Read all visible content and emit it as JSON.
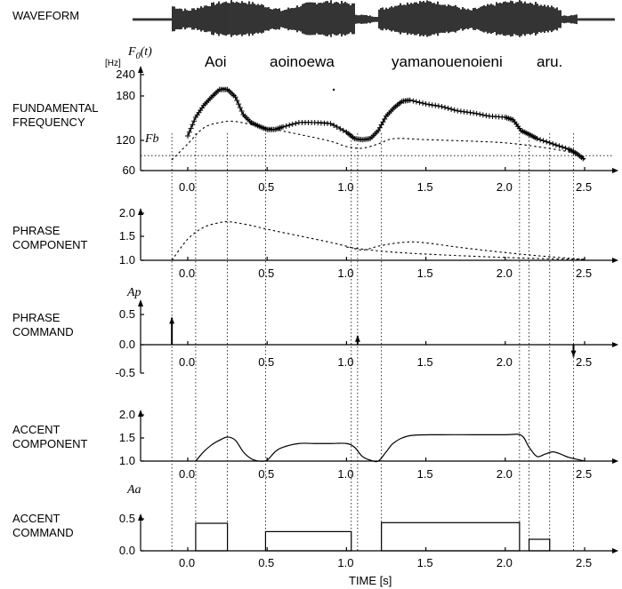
{
  "chart_data": {
    "type": "line",
    "title": "",
    "xlabel": "TIME [s]",
    "xlim": [
      -0.3,
      2.7
    ],
    "xticks": [
      "0.0",
      "0.5",
      "1.0",
      "1.5",
      "2.0",
      "2.5"
    ],
    "waveform_label": "WAVEFORM",
    "words": [
      "Aoi",
      "aoinoewa",
      "yamanouenoieni",
      "aru."
    ],
    "panels": [
      {
        "id": "f0",
        "label": "FUNDAMENTAL\nFREQUENCY",
        "unit": "[Hz]",
        "symbol": "F0(t)",
        "baseline_label": "Fb",
        "yticks": [
          "60",
          "120",
          "180",
          "240"
        ],
        "ylim": [
          60,
          240
        ],
        "fb": 88,
        "series": [
          {
            "style": "observed",
            "x": [
              0.0,
              0.05,
              0.1,
              0.15,
              0.2,
              0.25,
              0.3,
              0.35,
              0.4,
              0.45,
              0.5,
              0.55,
              0.6,
              0.7,
              0.8,
              0.9,
              1.0,
              1.05,
              1.1,
              1.15,
              1.2,
              1.25,
              1.3,
              1.35,
              1.4,
              1.5,
              1.6,
              1.7,
              1.8,
              1.9,
              2.0,
              2.05,
              2.1,
              2.15,
              2.2,
              2.3,
              2.4,
              2.45,
              2.5
            ],
            "y": [
              125,
              160,
              182,
              198,
              212,
              212,
              198,
              165,
              150,
              143,
              137,
              137,
              142,
              150,
              150,
              148,
              132,
              120,
              118,
              120,
              135,
              162,
              178,
              190,
              192,
              185,
              180,
              172,
              168,
              162,
              160,
              155,
              135,
              128,
              120,
              110,
              100,
              92,
              80
            ]
          },
          {
            "style": "model",
            "x": [
              -0.1,
              0.0,
              0.1,
              0.2,
              0.3,
              0.5,
              0.7,
              0.9,
              1.0,
              1.1,
              1.2,
              1.3,
              1.5,
              1.8,
              2.0,
              2.2,
              2.4,
              2.5
            ],
            "y": [
              80,
              110,
              140,
              150,
              152,
              140,
              128,
              115,
              105,
              102,
              110,
              120,
              118,
              115,
              112,
              105,
              95,
              85
            ]
          }
        ]
      },
      {
        "id": "phrase_component",
        "label": "PHRASE\nCOMPONENT",
        "yticks": [
          "1.0",
          "1.5",
          "2.0"
        ],
        "ylim": [
          1.0,
          2.0
        ],
        "series": [
          {
            "style": "model",
            "x": [
              -0.1,
              0.0,
              0.1,
              0.2,
              0.25,
              0.3,
              0.4,
              0.5,
              0.7,
              0.9,
              1.0,
              1.1,
              1.2,
              1.3,
              1.4,
              1.5,
              1.7,
              1.9,
              2.1,
              2.3,
              2.5
            ],
            "y": [
              1.0,
              1.45,
              1.7,
              1.8,
              1.82,
              1.8,
              1.74,
              1.66,
              1.52,
              1.38,
              1.3,
              1.22,
              1.3,
              1.36,
              1.39,
              1.37,
              1.28,
              1.2,
              1.13,
              1.07,
              1.02
            ]
          },
          {
            "style": "model",
            "x": [
              1.0,
              1.2,
              1.4,
              1.7,
              2.0,
              2.3,
              2.5
            ],
            "y": [
              1.28,
              1.2,
              1.15,
              1.1,
              1.06,
              1.03,
              1.02
            ]
          }
        ]
      },
      {
        "id": "phrase_command",
        "label": "PHRASE\nCOMMAND",
        "symbol": "Ap",
        "yticks": [
          "0.0",
          "0.5",
          "-0.5"
        ],
        "ylim": [
          -0.5,
          0.5
        ],
        "impulses": [
          {
            "t": -0.1,
            "a": 0.45
          },
          {
            "t": 1.07,
            "a": 0.15
          },
          {
            "t": 2.43,
            "a": -0.2
          }
        ]
      },
      {
        "id": "accent_component",
        "label": "ACCENT\nCOMPONENT",
        "yticks": [
          "1.0",
          "1.5",
          "2.0"
        ],
        "ylim": [
          1.0,
          2.0
        ],
        "series": [
          {
            "style": "model",
            "x": [
              0.05,
              0.1,
              0.15,
              0.2,
              0.25,
              0.3,
              0.35,
              0.4,
              0.45,
              0.5,
              0.55,
              0.6,
              0.7,
              0.8,
              0.9,
              1.0,
              1.05,
              1.1,
              1.15,
              1.2,
              1.25,
              1.3,
              1.4,
              1.6,
              1.8,
              2.0,
              2.1,
              2.15,
              2.2,
              2.25,
              2.3,
              2.35,
              2.4,
              2.5
            ],
            "y": [
              1.0,
              1.2,
              1.35,
              1.45,
              1.52,
              1.45,
              1.2,
              1.05,
              1.0,
              1.02,
              1.2,
              1.3,
              1.38,
              1.38,
              1.38,
              1.38,
              1.3,
              1.1,
              1.02,
              1.0,
              1.2,
              1.4,
              1.55,
              1.57,
              1.57,
              1.57,
              1.56,
              1.3,
              1.1,
              1.15,
              1.2,
              1.15,
              1.08,
              1.0
            ]
          }
        ]
      },
      {
        "id": "accent_command",
        "label": "ACCENT\nCOMMAND",
        "symbol": "Aa",
        "yticks": [
          "0.0",
          "0.5"
        ],
        "ylim": [
          0.0,
          0.5
        ],
        "pulses": [
          {
            "t1": 0.05,
            "t2": 0.25,
            "a": 0.43
          },
          {
            "t1": 0.49,
            "t2": 1.03,
            "a": 0.3
          },
          {
            "t1": 1.22,
            "t2": 2.09,
            "a": 0.44
          },
          {
            "t1": 2.15,
            "t2": 2.28,
            "a": 0.18
          }
        ]
      }
    ],
    "vertical_markers": [
      -0.1,
      0.05,
      0.25,
      0.49,
      1.03,
      1.07,
      1.22,
      2.09,
      2.15,
      2.28,
      2.43
    ]
  }
}
